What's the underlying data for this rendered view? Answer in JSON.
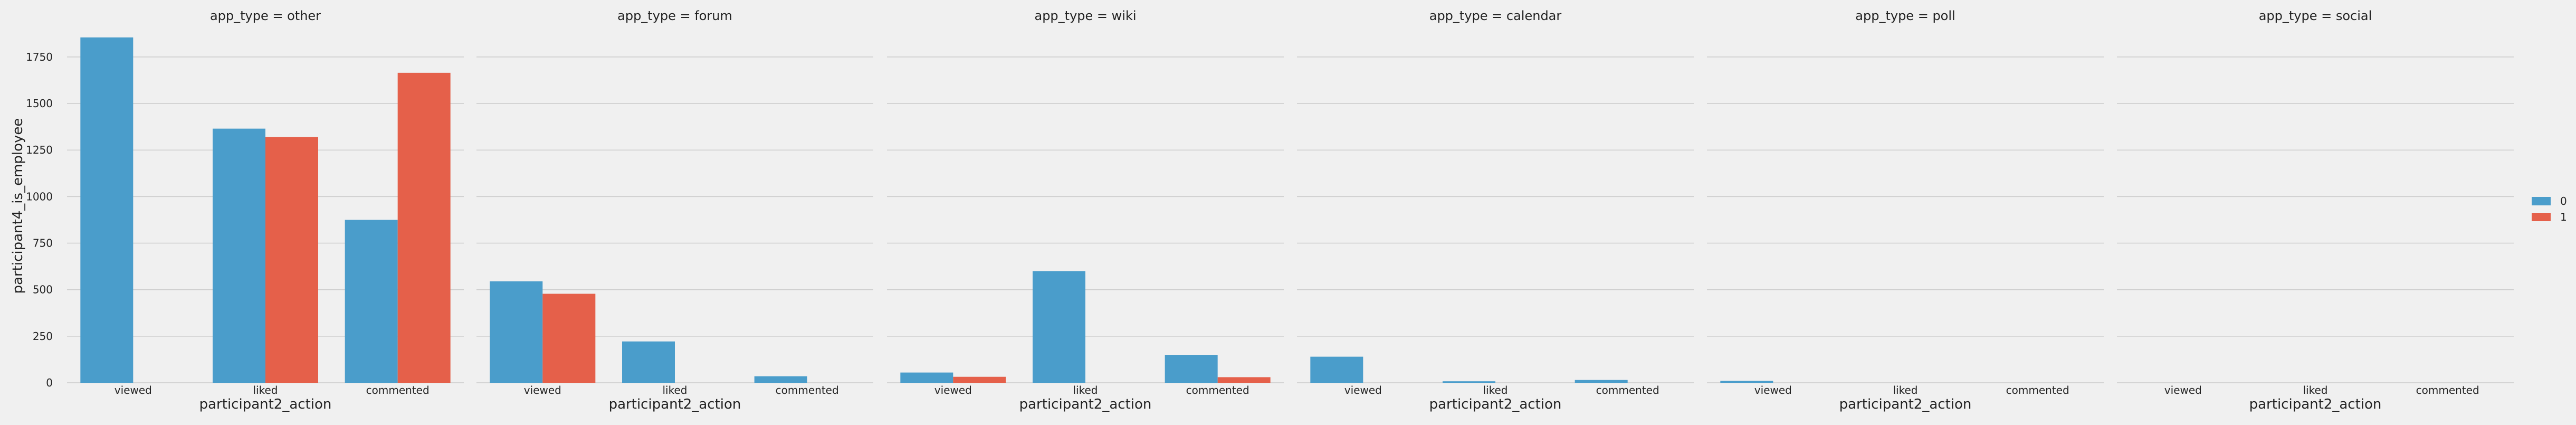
{
  "chart_data": {
    "type": "bar",
    "facet_variable": "app_type",
    "facet_titles": [
      "app_type = other",
      "app_type = forum",
      "app_type = wiki",
      "app_type = calendar",
      "app_type = poll",
      "app_type = social"
    ],
    "categories": [
      "viewed",
      "liked",
      "commented"
    ],
    "xlabel": "participant2_action",
    "ylabel": "participant4_is_employee",
    "ylim": [
      0,
      1900
    ],
    "yticks": [
      0,
      250,
      500,
      750,
      1000,
      1250,
      1500,
      1750
    ],
    "grid": true,
    "legend": {
      "placement": "right",
      "entries": [
        "0",
        "1"
      ]
    },
    "colors": {
      "0": "#4a9dcb",
      "1": "#e5604a"
    },
    "series": [
      {
        "name": "0",
        "facets": [
          [
            1855,
            1365,
            875
          ],
          [
            545,
            222,
            35
          ],
          [
            55,
            600,
            150
          ],
          [
            140,
            8,
            15
          ],
          [
            10,
            0,
            0
          ],
          [
            0,
            0,
            0
          ]
        ]
      },
      {
        "name": "1",
        "facets": [
          [
            0,
            1320,
            1665
          ],
          [
            478,
            0,
            0
          ],
          [
            32,
            0,
            30
          ],
          [
            0,
            0,
            0
          ],
          [
            0,
            0,
            0
          ],
          [
            0,
            0,
            0
          ]
        ]
      }
    ]
  }
}
